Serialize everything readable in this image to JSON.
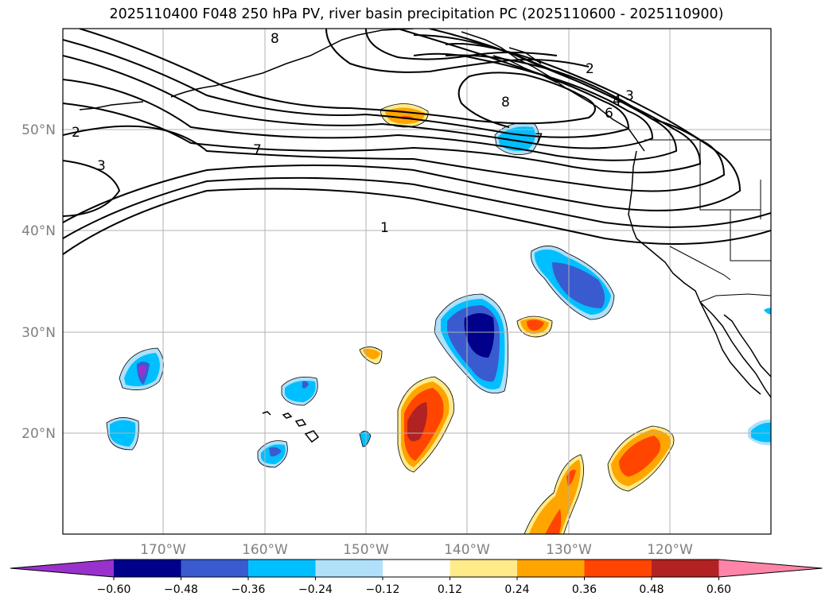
{
  "title": "2025110400 F048 250 hPa PV, river basin precipitation PC (2025110600 - 2025110900)",
  "lat_labels": [
    "50°N",
    "40°N",
    "30°N",
    "20°N"
  ],
  "lon_labels": [
    "170°W",
    "160°W",
    "150°W",
    "140°W",
    "130°W",
    "120°W"
  ],
  "contour_labels": [
    "2",
    "3",
    "7",
    "1",
    "2",
    "3",
    "4",
    "6",
    "7",
    "8",
    "8"
  ],
  "colorbar": {
    "ticks": [
      "−0.60",
      "−0.48",
      "−0.36",
      "−0.24",
      "−0.12",
      "0.12",
      "0.24",
      "0.36",
      "0.48",
      "0.60"
    ],
    "colors": [
      "#9932cc",
      "#00008b",
      "#3a5bcf",
      "#00bfff",
      "#b0e0fa",
      "#ffffff",
      "#ffeb8a",
      "#ffa500",
      "#ff4500",
      "#b22222",
      "#ff85a8"
    ]
  }
}
